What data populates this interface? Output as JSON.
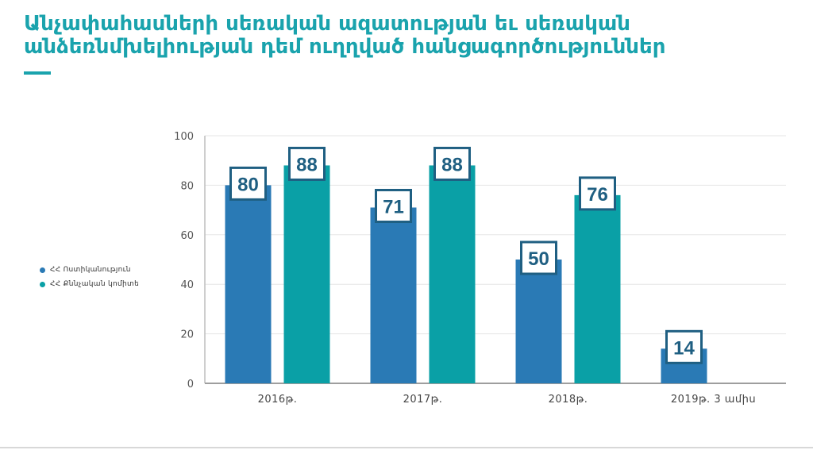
{
  "title": "Անչափահասների սեռական ազատության եւ սեռական անձեռնմխելիության դեմ ուղղված հանցագործություններ",
  "colors": {
    "title": "#1aa3ad",
    "series_police": "#2a7ab5",
    "series_investigative": "#0aa0a6",
    "label_border": "#1f5f82",
    "label_text": "#1f5f82"
  },
  "chart_data": {
    "type": "bar",
    "title": "Անչափահասների սեռական ազատության եւ սեռական անձեռնմխելիության դեմ ուղղված հանցագործություններ",
    "categories": [
      "2016թ.",
      "2017թ.",
      "2018թ.",
      "2019թ. 3 ամիս"
    ],
    "series": [
      {
        "name": "ՀՀ Ոստիկանություն",
        "values": [
          80,
          71,
          50,
          14
        ],
        "color": "#2a7ab5"
      },
      {
        "name": "ՀՀ Քննչական կոմիտե",
        "values": [
          88,
          88,
          76,
          null
        ],
        "color": "#0aa0a6"
      }
    ],
    "ylim": [
      0,
      100
    ],
    "yticks": [
      0,
      20,
      40,
      60,
      80,
      100
    ],
    "grid": true,
    "legend": "left",
    "data_labels": true
  }
}
